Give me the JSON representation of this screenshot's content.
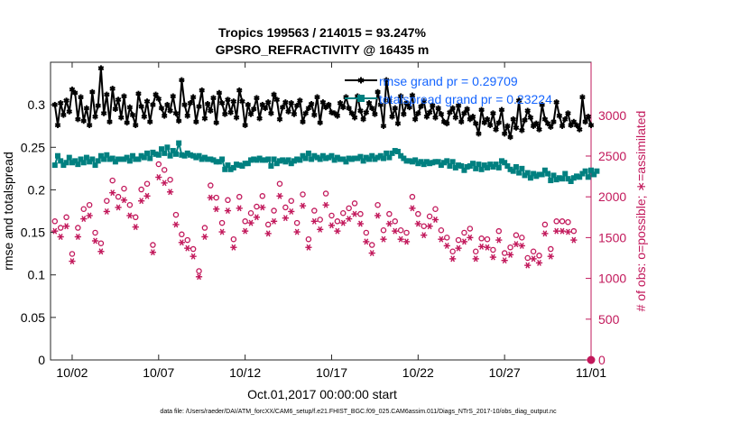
{
  "chart_data": {
    "type": "line",
    "title": "Tropics 199563 / 214015 = 93.247%",
    "subtitle": "GPSRO_REFRACTIVITY @ 16435 m",
    "xlabel": "Oct.01,2017 00:00:00 start",
    "ylabel": "rmse and totalspread",
    "y2label": "# of obs: o=possible; ∗=assimilated",
    "footer": "data file: /Users/raeder/DAI/ATM_forcXX/CAM6_setup/f.e21.FHIST_BGC.f09_025.CAM6assim.011/Diags_NTrS_2017-10/obs_diag_output.nc",
    "xlim": [
      0.75,
      32
    ],
    "ylim": [
      0,
      0.35
    ],
    "y2lim": [
      0,
      3650
    ],
    "xticks": [
      2,
      7,
      12,
      17,
      22,
      27,
      32
    ],
    "xtick_labels": [
      "10/02",
      "10/07",
      "10/12",
      "10/17",
      "10/22",
      "10/27",
      "11/01"
    ],
    "yticks": [
      0,
      0.05,
      0.1,
      0.15,
      0.2,
      0.25,
      0.3
    ],
    "ytick_labels": [
      "0",
      "0.05",
      "0.1",
      "0.15",
      "0.2",
      "0.25",
      "0.3"
    ],
    "y2ticks": [
      0,
      500,
      1000,
      1500,
      2000,
      2500,
      3000
    ],
    "y2tick_labels": [
      "0",
      "500",
      "1000",
      "1500",
      "2000",
      "2500",
      "3000"
    ],
    "legend_position": "top-right",
    "grid": false,
    "series": [
      {
        "name": "rmse grand pr = 0.29709",
        "axis": "left",
        "color": "#000000",
        "marker": "star",
        "values": [
          0.3,
          0.276,
          0.302,
          0.288,
          0.305,
          0.292,
          0.318,
          0.314,
          0.283,
          0.309,
          0.281,
          0.296,
          0.276,
          0.315,
          0.286,
          0.299,
          0.343,
          0.29,
          0.312,
          0.28,
          0.319,
          0.295,
          0.306,
          0.285,
          0.31,
          0.279,
          0.297,
          0.288,
          0.276,
          0.313,
          0.298,
          0.286,
          0.304,
          0.28,
          0.3,
          0.312,
          0.307,
          0.296,
          0.287,
          0.3,
          0.293,
          0.31,
          0.29,
          0.281,
          0.329,
          0.3,
          0.287,
          0.302,
          0.309,
          0.28,
          0.298,
          0.317,
          0.284,
          0.301,
          0.293,
          0.308,
          0.279,
          0.314,
          0.302,
          0.289,
          0.306,
          0.291,
          0.304,
          0.285,
          0.317,
          0.304,
          0.276,
          0.3,
          0.289,
          0.295,
          0.308,
          0.284,
          0.3,
          0.296,
          0.303,
          0.29,
          0.312,
          0.306,
          0.283,
          0.297,
          0.303,
          0.292,
          0.302,
          0.289,
          0.299,
          0.305,
          0.28,
          0.29,
          0.296,
          0.301,
          0.288,
          0.309,
          0.279,
          0.303,
          0.297,
          0.3,
          0.291,
          0.29,
          0.287,
          0.302,
          0.297,
          0.309,
          0.296,
          0.29,
          0.285,
          0.31,
          0.293,
          0.283,
          0.291,
          0.302,
          0.296,
          0.289,
          0.315,
          0.3,
          0.275,
          0.329,
          0.305,
          0.286,
          0.296,
          0.278,
          0.31,
          0.289,
          0.302,
          0.297,
          0.311,
          0.283,
          0.29,
          0.298,
          0.304,
          0.286,
          0.291,
          0.299,
          0.285,
          0.296,
          0.289,
          0.28,
          0.278,
          0.291,
          0.296,
          0.285,
          0.299,
          0.28,
          0.29,
          0.295,
          0.283,
          0.286,
          0.278,
          0.266,
          0.294,
          0.279,
          0.283,
          0.276,
          0.29,
          0.271,
          0.279,
          0.294,
          0.266,
          0.275,
          0.262,
          0.283,
          0.273,
          0.305,
          0.27,
          0.282,
          0.293,
          0.285,
          0.275,
          0.278,
          0.271,
          0.3,
          0.283,
          0.278,
          0.274,
          0.28,
          0.303,
          0.287,
          0.275,
          0.283,
          0.29,
          0.276,
          0.28,
          0.276,
          0.271,
          0.309,
          0.28,
          0.286,
          0.276
        ]
      },
      {
        "name": "totalspread grand pr = 0.23224",
        "axis": "left",
        "color": "#008080",
        "marker": "square",
        "values": [
          0.229,
          0.24,
          0.234,
          0.229,
          0.232,
          0.238,
          0.232,
          0.234,
          0.23,
          0.236,
          0.232,
          0.238,
          0.233,
          0.236,
          0.229,
          0.234,
          0.24,
          0.236,
          0.241,
          0.236,
          0.237,
          0.233,
          0.236,
          0.236,
          0.236,
          0.238,
          0.234,
          0.24,
          0.236,
          0.236,
          0.24,
          0.238,
          0.243,
          0.237,
          0.244,
          0.242,
          0.241,
          0.248,
          0.243,
          0.25,
          0.24,
          0.246,
          0.242,
          0.255,
          0.241,
          0.24,
          0.243,
          0.241,
          0.24,
          0.238,
          0.24,
          0.236,
          0.238,
          0.236,
          0.236,
          0.235,
          0.233,
          0.233,
          0.236,
          0.224,
          0.229,
          0.224,
          0.226,
          0.23,
          0.229,
          0.228,
          0.231,
          0.231,
          0.235,
          0.236,
          0.235,
          0.237,
          0.235,
          0.235,
          0.236,
          0.228,
          0.236,
          0.231,
          0.234,
          0.235,
          0.233,
          0.235,
          0.231,
          0.234,
          0.236,
          0.235,
          0.24,
          0.237,
          0.243,
          0.236,
          0.24,
          0.238,
          0.236,
          0.24,
          0.237,
          0.238,
          0.24,
          0.235,
          0.238,
          0.236,
          0.236,
          0.233,
          0.237,
          0.236,
          0.237,
          0.237,
          0.239,
          0.234,
          0.238,
          0.236,
          0.24,
          0.236,
          0.238,
          0.24,
          0.237,
          0.243,
          0.238,
          0.243,
          0.246,
          0.245,
          0.24,
          0.237,
          0.234,
          0.234,
          0.233,
          0.235,
          0.231,
          0.233,
          0.23,
          0.233,
          0.231,
          0.232,
          0.233,
          0.233,
          0.229,
          0.232,
          0.234,
          0.228,
          0.233,
          0.226,
          0.229,
          0.228,
          0.223,
          0.227,
          0.228,
          0.231,
          0.225,
          0.23,
          0.224,
          0.229,
          0.226,
          0.23,
          0.227,
          0.23,
          0.226,
          0.234,
          0.232,
          0.228,
          0.224,
          0.222,
          0.227,
          0.22,
          0.225,
          0.217,
          0.22,
          0.214,
          0.219,
          0.216,
          0.218,
          0.218,
          0.223,
          0.219,
          0.211,
          0.217,
          0.212,
          0.214,
          0.213,
          0.219,
          0.213,
          0.21,
          0.214,
          0.216,
          0.215,
          0.219,
          0.222,
          0.215,
          0.223,
          0.218,
          0.222
        ]
      },
      {
        "name": "possible",
        "axis": "right",
        "color": "#c2185b",
        "marker": "circle",
        "values": [
          1700,
          1650,
          1620,
          1780,
          1750,
          1600,
          1300,
          1520,
          1620,
          1950,
          1850,
          1780,
          1900,
          1320,
          1560,
          1720,
          1430,
          1800,
          1950,
          1650,
          2200,
          1790,
          2000,
          1750,
          2100,
          1980,
          1900,
          2130,
          1750,
          1610,
          2090,
          2020,
          2160,
          2240,
          1410,
          1760,
          2400,
          1970,
          2330,
          2030,
          2210,
          2020,
          1780,
          1690,
          1540,
          1580,
          1470,
          1700,
          1360,
          1280,
          1090,
          1740,
          1620,
          1780,
          2140,
          1750,
          1990,
          1950,
          1680,
          2130,
          1960,
          2070,
          1480,
          1820,
          2000,
          1960,
          1700,
          1460,
          1800,
          1520,
          1880,
          1880,
          2010,
          2030,
          1660,
          2160,
          1830,
          1920,
          2160,
          1950,
          1870,
          1620,
          1950,
          1800,
          1680,
          1750,
          2030,
          1780,
          1480,
          1690,
          1830,
          1650,
          1720,
          1920,
          2040,
          1890,
          1770,
          1580,
          1700,
          1990,
          1800,
          1700,
          1860,
          1480,
          1920,
          1650,
          1790,
          1790,
          1560,
          1930,
          1410,
          1780,
          1900,
          1720,
          1590,
          1540,
          1790,
          1820,
          1700,
          1500,
          1590,
          1890,
          1560,
          1590,
          2000,
          1680,
          1790,
          1760,
          1640,
          1680,
          1760,
          1640,
          1850,
          1580,
          1590,
          1460,
          1500,
          1380,
          1330,
          1670,
          1470,
          1830,
          1560,
          1330,
          1610,
          1270,
          1330,
          1310,
          1490,
          1170,
          1480,
          1250,
          1350,
          1280,
          1580,
          1510,
          1310,
          1370,
          1380,
          1270,
          1530,
          1480,
          1500,
          1350,
          1250,
          1460,
          1330,
          1840,
          1280,
          1530,
          1660,
          1580,
          1360,
          1770,
          1700,
          1520,
          1700,
          1710,
          1690,
          1780,
          1580,
          1620
        ]
      },
      {
        "name": "assimilated",
        "axis": "right",
        "color": "#c2185b",
        "marker": "asterisk",
        "values": [
          1580,
          1540,
          1510,
          1660,
          1640,
          1490,
          1210,
          1420,
          1510,
          1820,
          1730,
          1660,
          1770,
          1230,
          1460,
          1610,
          1330,
          1680,
          1820,
          1540,
          2050,
          1670,
          1870,
          1630,
          1960,
          1850,
          1770,
          1990,
          1630,
          1500,
          1950,
          1880,
          2010,
          2090,
          1320,
          1640,
          2240,
          1840,
          2170,
          1890,
          2060,
          1880,
          1660,
          1580,
          1440,
          1470,
          1370,
          1590,
          1270,
          1190,
          1020,
          1620,
          1510,
          1660,
          1990,
          1630,
          1850,
          1820,
          1570,
          1980,
          1830,
          1930,
          1380,
          1700,
          1860,
          1830,
          1580,
          1360,
          1680,
          1420,
          1750,
          1750,
          1870,
          1890,
          1550,
          2010,
          1700,
          1790,
          2010,
          1820,
          1740,
          1510,
          1820,
          1680,
          1570,
          1630,
          1890,
          1660,
          1380,
          1570,
          1700,
          1540,
          1600,
          1790,
          1900,
          1760,
          1650,
          1470,
          1580,
          1850,
          1680,
          1580,
          1730,
          1380,
          1790,
          1540,
          1670,
          1670,
          1450,
          1800,
          1310,
          1660,
          1770,
          1600,
          1480,
          1430,
          1670,
          1700,
          1580,
          1400,
          1480,
          1760,
          1450,
          1480,
          1860,
          1560,
          1670,
          1640,
          1530,
          1560,
          1640,
          1530,
          1720,
          1470,
          1480,
          1360,
          1400,
          1290,
          1240,
          1560,
          1370,
          1700,
          1450,
          1240,
          1500,
          1180,
          1240,
          1220,
          1390,
          1090,
          1380,
          1160,
          1260,
          1190,
          1470,
          1410,
          1220,
          1280,
          1290,
          1180,
          1420,
          1380,
          1400,
          1260,
          1160,
          1360,
          1240,
          1710,
          1190,
          1420,
          1550,
          1470,
          1270,
          1650,
          1580,
          1420,
          1580,
          1590,
          1570,
          1660,
          1470,
          1510
        ]
      }
    ]
  }
}
